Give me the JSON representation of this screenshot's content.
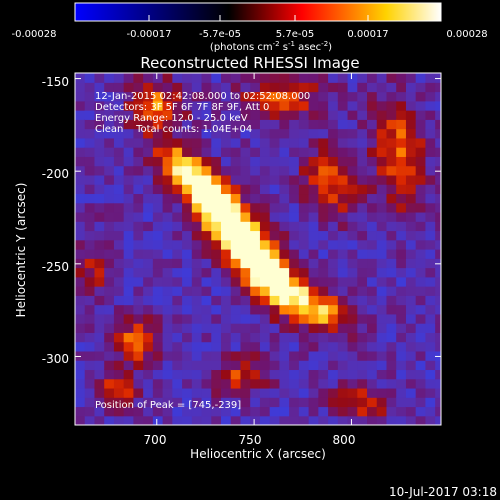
{
  "colorbar": {
    "tick_labels": [
      "-0.00028",
      "-0.00017",
      "-5.7e-05",
      "5.7e-05",
      "0.00017",
      "0.00028"
    ],
    "units": "(photons cm-2 s-1 asec-2)",
    "units_parts": {
      "a": "(photons cm",
      "exp1": "-2",
      "b": " s",
      "exp2": "-1",
      "c": " asec",
      "exp3": "-2",
      "d": ")"
    },
    "colors": [
      "#0000ff",
      "#000000",
      "#ff0000",
      "#ffff00",
      "#ffffff"
    ]
  },
  "chart_data": {
    "type": "heatmap",
    "title": "Reconstructed RHESSI Image",
    "xlabel": "Heliocentric X (arcsec)",
    "ylabel": "Heliocentric Y (arcsec)",
    "xlim": [
      658,
      846
    ],
    "ylim": [
      -337,
      -147
    ],
    "x_ticks": [
      700,
      750,
      800
    ],
    "y_ticks": [
      -150,
      -200,
      -250,
      -300
    ],
    "annotations": [
      "12-Jan-2015 02:42:08.000 to 02:52:08.000",
      "Detectors: 3F 5F 6F 7F 8F 9F, Att 0",
      "Energy Range: 12.0 - 25.0 keV",
      "Clean    Total counts: 1.04E+04"
    ],
    "peak_label": "Position of Peak = [745,-239]",
    "peak": [
      745,
      -239
    ],
    "value_range": [
      -0.00028,
      0.00028
    ]
  },
  "footer": {
    "date": "10-Jul-2017 03:18"
  }
}
